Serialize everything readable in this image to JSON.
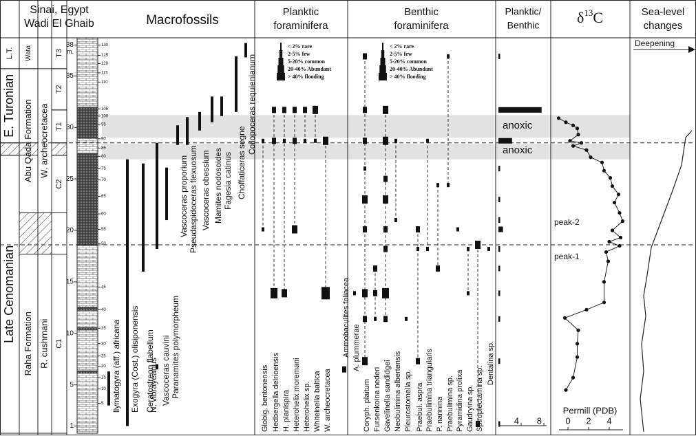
{
  "header": {
    "location": "Sinai, Egypt",
    "section": "Wadi El Ghaib",
    "macrofossils": "Macrofossils",
    "planktic": [
      "Planktic",
      "foraminifera"
    ],
    "benthic": [
      "Benthic",
      "foraminifera"
    ],
    "pb": [
      "Planktic/",
      "Benthic"
    ],
    "d13c": {
      "symbol": "δ",
      "sup": "13",
      "letter": "C"
    },
    "sea_level": [
      "Sea-level",
      "changes"
    ]
  },
  "stratigraphy": [
    {
      "units": [
        {
          "label": "L.T.",
          "top": 38.7,
          "bottom": 35.7
        },
        {
          "label": "E. Turonian",
          "top": 35.7,
          "bottom": 28.5
        },
        {
          "label": "Late Cenomanian",
          "top": 27.3,
          "bottom": 0.3
        }
      ],
      "hatches": [
        [
          28.5,
          27.3
        ]
      ]
    },
    {
      "units": [
        {
          "label": "Wata",
          "top": 38.7,
          "bottom": 35.7
        },
        {
          "label": "Abu Qada Formation",
          "top": 35.7,
          "bottom": 21.7
        },
        {
          "label": "Raha Formation",
          "top": 17.7,
          "bottom": 0.3
        }
      ],
      "hatches": [
        [
          28.5,
          27.3
        ],
        [
          21.7,
          17.7
        ]
      ]
    },
    {
      "units": [
        {
          "label": "W. archeocretacea",
          "top": 35.7,
          "bottom": 21.7
        },
        {
          "label": "R. cushmani",
          "top": 17.7,
          "bottom": 0.3
        }
      ],
      "hatches": [
        [
          21.7,
          17.7
        ]
      ]
    },
    {
      "units": [
        {
          "label": "T3",
          "top": 38.7,
          "bottom": 35.7
        },
        {
          "label": "T2",
          "top": 35.7,
          "bottom": 31.7
        },
        {
          "label": "T1",
          "top": 31.7,
          "bottom": 28.5
        },
        {
          "label": "C2",
          "top": 27.3,
          "bottom": 21.7
        },
        {
          "label": "C1",
          "top": 17.7,
          "bottom": 0.3
        }
      ],
      "hatches": [
        [
          28.5,
          27.3
        ]
      ]
    }
  ],
  "depth": {
    "ylim": [
      0.3,
      38.7
    ],
    "ticks": [
      1,
      5,
      10,
      15,
      20,
      25,
      30,
      35,
      38
    ],
    "unit": "m.",
    "sample_ticks": [
      {
        "value": 38.0,
        "label": "130"
      },
      {
        "value": 37.0,
        "label": "125"
      },
      {
        "value": 36.2,
        "label": "120"
      },
      {
        "value": 35.3,
        "label": "115"
      },
      {
        "value": 34.4,
        "label": "110"
      },
      {
        "value": 31.8,
        "label": "105"
      },
      {
        "value": 31.1,
        "label": "100"
      },
      {
        "value": 30.3,
        "label": "95"
      },
      {
        "value": 28.9,
        "label": "90"
      },
      {
        "value": 28.0,
        "label": "85"
      },
      {
        "value": 27.2,
        "label": "80"
      },
      {
        "value": 26.0,
        "label": "75"
      },
      {
        "value": 24.9,
        "label": "70"
      },
      {
        "value": 23.3,
        "label": "65"
      },
      {
        "value": 21.6,
        "label": "60"
      },
      {
        "value": 20.1,
        "label": "55"
      },
      {
        "value": 18.7,
        "label": "50"
      },
      {
        "value": 14.5,
        "label": "45"
      },
      {
        "value": 12.3,
        "label": "40"
      },
      {
        "value": 10.5,
        "label": "35"
      },
      {
        "value": 9.0,
        "label": "30"
      },
      {
        "value": 7.8,
        "label": "25"
      },
      {
        "value": 6.8,
        "label": "20"
      },
      {
        "value": 5.7,
        "label": "15"
      },
      {
        "value": 4.6,
        "label": "10"
      },
      {
        "value": 3.2,
        "label": "5"
      }
    ]
  },
  "legend": [
    "< 2% rare",
    "2-5% few",
    "5-20% common",
    "20-40% Abundant",
    "> 40% flooding"
  ],
  "macrofossils": [
    {
      "name": "llymatogyra (aff.) africana",
      "range": [
        6.3,
        3.0
      ]
    },
    {
      "name": "Exogyra (Cost.) olisiponensis",
      "range": [
        26.9,
        1.0
      ]
    },
    {
      "name": "Ceratostreon flabellum",
      "range": [
        26.5,
        16.0
      ]
    },
    {
      "name": "N. vibrayeanus",
      "range": [
        7.0,
        6.5
      ]
    },
    {
      "name": "Vascoceras cauvini",
      "range": [
        28.5,
        18.2
      ]
    },
    {
      "name": "Paranamites polymorpheum",
      "range": [
        26.1,
        21.0
      ]
    },
    {
      "name": "Vascoceras proporium",
      "range": [
        30.2,
        28.3
      ]
    },
    {
      "name": "Pseudaspidoceras flexuosum",
      "range": [
        31.0,
        28.3
      ]
    },
    {
      "name": "Vascoceras obessium",
      "range": [
        31.5,
        29.7
      ]
    },
    {
      "name": "Mamites nodosoides",
      "range": [
        33.0,
        30.5
      ]
    },
    {
      "name": "Fagesia catinus",
      "range": [
        33.0,
        31.1
      ]
    },
    {
      "name": "Choffaticeras segne",
      "range": [
        36.9,
        31.5
      ]
    },
    {
      "name": "Coilopoceras requienianum",
      "range": [
        38.2,
        36.8
      ]
    }
  ],
  "planktic": [
    {
      "name": "Globig. bentonensis",
      "samples": [
        [
          28.7,
          1
        ],
        [
          20.1,
          1
        ]
      ]
    },
    {
      "name": "Hedbergella delrioensis",
      "samples": [
        [
          31.7,
          2
        ],
        [
          28.7,
          2
        ],
        [
          13.9,
          4
        ]
      ]
    },
    {
      "name": "H. planispira",
      "samples": [
        [
          31.7,
          2
        ],
        [
          28.7,
          1
        ],
        [
          13.9,
          3
        ]
      ]
    },
    {
      "name": "Heterohelix moremani",
      "samples": [
        [
          31.7,
          2
        ],
        [
          28.7,
          2
        ],
        [
          20.1,
          3
        ]
      ]
    },
    {
      "name": "Heterohelix sp.",
      "samples": [
        [
          31.7,
          2
        ],
        [
          28.7,
          1
        ]
      ]
    },
    {
      "name": "Whiteinella baltica",
      "samples": [
        [
          31.7,
          3
        ],
        [
          28.7,
          1
        ]
      ]
    },
    {
      "name": "W. archeocretacea",
      "samples": [
        [
          28.7,
          3
        ],
        [
          13.9,
          5
        ]
      ]
    }
  ],
  "benthic": [
    {
      "name": "Ammobaculites foliacea",
      "samples": [
        [
          6.5,
          2
        ]
      ]
    },
    {
      "name": "A. plummerae",
      "samples": [
        [
          13.9,
          1
        ]
      ]
    },
    {
      "name": "Coryph. plaitum",
      "samples": [
        [
          36.9,
          2
        ],
        [
          31.7,
          2
        ],
        [
          28.7,
          2
        ],
        [
          26.0,
          1
        ],
        [
          23.0,
          3
        ],
        [
          20.1,
          2
        ],
        [
          13.9,
          3
        ],
        [
          11.4,
          2
        ],
        [
          7.3,
          3
        ]
      ]
    },
    {
      "name": "Fursenkoina nederi",
      "samples": [
        [
          16.3,
          2
        ],
        [
          13.9,
          2
        ],
        [
          11.4,
          1
        ]
      ]
    },
    {
      "name": "Gavelinella sandidgei",
      "samples": [
        [
          31.7,
          3
        ],
        [
          28.7,
          3
        ],
        [
          25.0,
          2
        ],
        [
          23.0,
          3
        ],
        [
          20.1,
          2
        ],
        [
          18.2,
          2
        ],
        [
          13.9,
          4
        ],
        [
          11.4,
          2
        ]
      ]
    },
    {
      "name": "Neobulimina albertensis",
      "samples": [
        [
          28.7,
          1
        ],
        [
          21.0,
          1
        ]
      ]
    },
    {
      "name": "Pleurostomella sp.",
      "samples": [
        [
          11.4,
          1
        ]
      ]
    },
    {
      "name": "Praebul. aspra",
      "samples": [
        [
          20.1,
          2
        ],
        [
          18.2,
          1
        ],
        [
          7.3,
          2
        ]
      ]
    },
    {
      "name": "Praebulimina triangularis",
      "samples": [
        [
          28.7,
          1
        ],
        [
          18.2,
          1
        ]
      ]
    },
    {
      "name": "P. nannina",
      "samples": [
        [
          24.4,
          1
        ],
        [
          16.3,
          2
        ]
      ]
    },
    {
      "name": "Praebulimina sp.",
      "samples": [
        [
          36.9,
          1
        ],
        [
          24.4,
          1
        ]
      ]
    },
    {
      "name": "Pyramidina prolixa",
      "samples": [
        [
          20.1,
          1
        ]
      ]
    },
    {
      "name": "Gaudryina sp.",
      "samples": [
        [
          18.2,
          1
        ],
        [
          13.9,
          1
        ]
      ]
    },
    {
      "name": "Spiroplectamina sp.",
      "samples": [
        [
          18.6,
          3
        ],
        [
          1.2,
          2
        ]
      ]
    },
    {
      "name": "Dentalina sp.",
      "samples": [
        [
          18.2,
          1
        ]
      ]
    }
  ],
  "planktic_benthic": {
    "xlim": [
      0,
      8
    ],
    "xticks": [
      4,
      8
    ],
    "label": "anoxic",
    "depths": [
      36.9,
      31.7,
      28.7,
      26.0,
      23.0,
      21.0,
      20.1,
      18.2,
      16.3,
      13.9,
      11.4,
      7.3,
      1.2
    ],
    "values": [
      0.3,
      7.6,
      2.4,
      0.3,
      0.3,
      0.3,
      0.8,
      0.3,
      0.3,
      0.3,
      0.3,
      0.3,
      0.3
    ]
  },
  "d13c": {
    "xlim": [
      -1.6,
      6
    ],
    "xticks": [
      0,
      2,
      4
    ],
    "xlabel": "Permill (PDB)",
    "peaks": [
      "peak-1",
      "peak-2"
    ],
    "depths": [
      30.9,
      30.5,
      30.2,
      29.9,
      29.3,
      28.7,
      28.5,
      28.2,
      27.8,
      27.1,
      26.6,
      25.8,
      25.1,
      24.3,
      23.5,
      22.7,
      21.7,
      20.9,
      20.0,
      19.3,
      18.9,
      18.5,
      17.9,
      17.0,
      15.0,
      13.0,
      12.3,
      11.5,
      10.3,
      9.0,
      7.7,
      5.7,
      4.5
    ],
    "values": [
      -0.9,
      -0.2,
      0.5,
      0.9,
      1.0,
      0.2,
      1.3,
      0.5,
      1.8,
      2.2,
      3.3,
      3.5,
      4.1,
      4.3,
      4.9,
      4.5,
      5.0,
      5.3,
      4.3,
      5.1,
      4.0,
      5.0,
      3.7,
      3.9,
      3.5,
      3.5,
      1.8,
      -0.3,
      1.0,
      0.9,
      0.9,
      0.5,
      -0.2
    ]
  },
  "anoxic_bands": [
    [
      31.2,
      29.0
    ],
    [
      28.4,
      26.9
    ]
  ],
  "boundaries": [
    28.5,
    18.6
  ],
  "sea_level": {
    "label": "Deepening"
  }
}
